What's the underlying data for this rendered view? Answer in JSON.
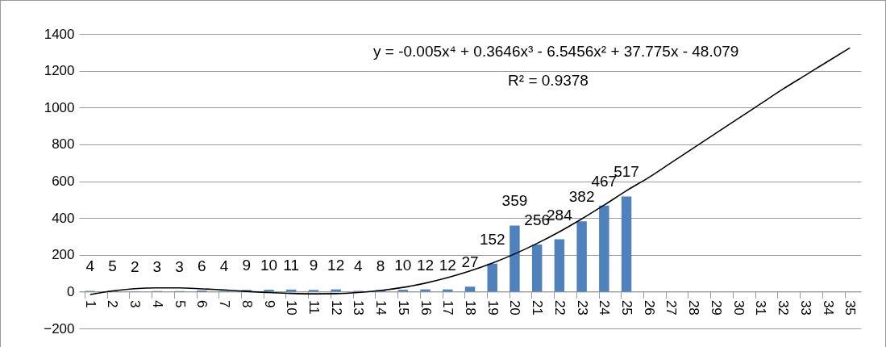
{
  "chart_data": {
    "type": "bar",
    "categories": [
      "1",
      "2",
      "3",
      "4",
      "5",
      "6",
      "7",
      "8",
      "9",
      "10",
      "11",
      "12",
      "13",
      "14",
      "15",
      "16",
      "17",
      "18",
      "19",
      "20",
      "21",
      "22",
      "23",
      "24",
      "25",
      "26",
      "27",
      "28",
      "29",
      "30",
      "31",
      "32",
      "33",
      "34",
      "35"
    ],
    "series": [
      {
        "color": "#4f81bd",
        "values": [
          4,
          5,
          2,
          3,
          3,
          6,
          4,
          9,
          10,
          11,
          9,
          12,
          4,
          8,
          10,
          12,
          12,
          27,
          152,
          359,
          256,
          284,
          382,
          467,
          517,
          null,
          null,
          null,
          null,
          null,
          null,
          null,
          null,
          null,
          null
        ],
        "value_labels": [
          "4",
          "5",
          "2",
          "3",
          "3",
          "6",
          "4",
          "9",
          "10",
          "11",
          "9",
          "12",
          "4",
          "8",
          "10",
          "12",
          "12",
          "27",
          "152",
          "359",
          "256",
          "284",
          "382",
          "467",
          "517",
          null,
          null,
          null,
          null,
          null,
          null,
          null,
          null,
          null,
          null
        ]
      },
      {
        "type": "line",
        "color": "#000000",
        "x": [
          "1",
          "2",
          "3",
          "4",
          "5",
          "6",
          "7",
          "8",
          "9",
          "10",
          "11",
          "12",
          "13",
          "14",
          "15",
          "16",
          "17",
          "18",
          "19",
          "20",
          "21",
          "22",
          "23",
          "24",
          "25",
          "26",
          "27",
          "28",
          "29",
          "30",
          "31",
          "32",
          "33",
          "34",
          "35"
        ],
        "values": [
          -16,
          4,
          16,
          20,
          20,
          15,
          9,
          1,
          -5,
          -10,
          -12,
          -11,
          -5,
          6,
          23,
          46,
          76,
          112,
          155,
          205,
          262,
          325,
          395,
          470,
          548,
          620,
          700,
          780,
          860,
          940,
          1020,
          1100,
          1175,
          1250,
          1324
        ]
      }
    ],
    "ylim": [
      -200,
      1400
    ],
    "yticks": [
      -200,
      0,
      200,
      400,
      600,
      800,
      1000,
      1200,
      1400
    ],
    "grid": "y",
    "annotations": [
      "y = -0.005x⁴ + 0.3646x³ - 6.5456x² + 37.775x - 48.079",
      "R² = 0.9378"
    ]
  }
}
